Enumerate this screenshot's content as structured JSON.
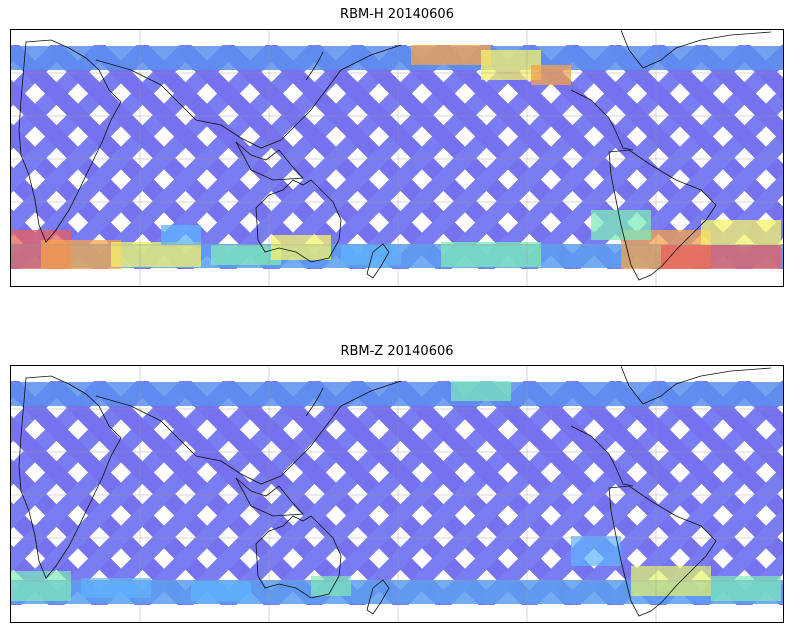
{
  "panels": [
    {
      "title": "RBM-H 20140606",
      "swath_color": "#6a66ee",
      "accent_colors": [
        "#5fb3ff",
        "#7fe9b8",
        "#f5f36b",
        "#f5a24b",
        "#e9605e"
      ],
      "high_latitude_bands": "strong"
    },
    {
      "title": "RBM-Z 20140606",
      "swath_color": "#6a66ee",
      "accent_colors": [
        "#5fb3ff",
        "#7fe9b8",
        "#e6f56b"
      ],
      "high_latitude_bands": "weak"
    }
  ],
  "map": {
    "projection": "equirectangular",
    "gridlines": true,
    "coastlines": true
  }
}
